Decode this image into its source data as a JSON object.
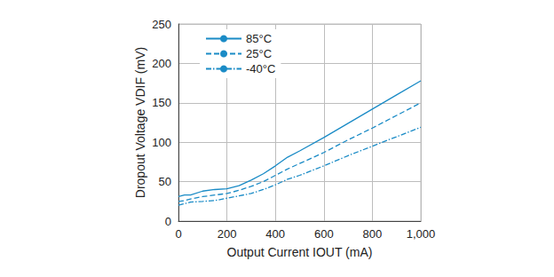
{
  "chart_data": {
    "type": "line",
    "x_label": "Output Current IOUT (mA)",
    "y_label": "Dropout Voltage VDIF (mV)",
    "xlim": [
      0,
      1000
    ],
    "xticks": [
      0,
      200,
      400,
      600,
      800,
      1000
    ],
    "ylim": [
      0,
      250
    ],
    "yticks": [
      0,
      50,
      100,
      150,
      200,
      250
    ],
    "grid": true,
    "legend": "upper left",
    "series": [
      {
        "name": "85°C",
        "color": "#1a8bc6",
        "line_style": "solid",
        "marker": "none",
        "x": [
          0,
          25,
          50,
          100,
          150,
          200,
          250,
          300,
          350,
          400,
          450,
          500,
          600,
          700,
          800,
          900,
          1000
        ],
        "values": [
          31,
          33,
          33,
          38,
          40,
          41,
          45,
          52,
          60,
          70,
          81,
          89,
          106,
          124,
          142,
          160,
          178
        ]
      },
      {
        "name": "25°C",
        "color": "#1a8bc6",
        "line_style": "dashed",
        "marker": "none",
        "x": [
          0,
          25,
          50,
          100,
          150,
          200,
          250,
          300,
          350,
          400,
          450,
          500,
          600,
          700,
          800,
          900,
          1000
        ],
        "values": [
          25,
          26,
          28,
          31,
          33,
          35,
          39,
          44,
          50,
          58,
          66,
          73,
          87,
          103,
          118,
          134,
          150
        ]
      },
      {
        "name": "-40°C",
        "color": "#1a8bc6",
        "line_style": "dashdot",
        "marker": "none",
        "x": [
          0,
          25,
          50,
          100,
          150,
          200,
          250,
          300,
          350,
          400,
          450,
          500,
          600,
          700,
          800,
          900,
          1000
        ],
        "values": [
          20,
          22,
          24,
          25,
          26,
          29,
          32,
          35,
          40,
          46,
          53,
          58,
          70,
          83,
          95,
          107,
          119
        ]
      }
    ]
  }
}
